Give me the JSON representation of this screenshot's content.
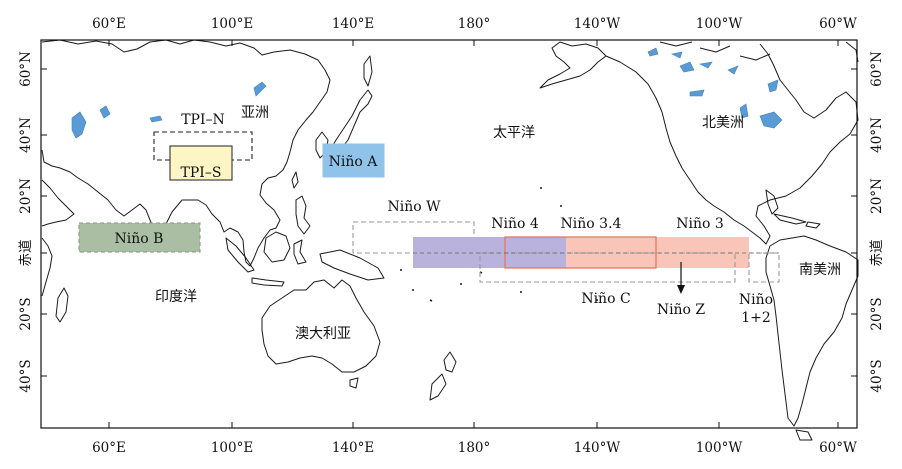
{
  "axes": {
    "lon_ticks": [
      "60°E",
      "100°E",
      "140°E",
      "180°",
      "140°W",
      "100°W",
      "60°W"
    ],
    "lat_ticks": [
      "60°N",
      "40°N",
      "20°N",
      "赤道",
      "20°S",
      "40°S"
    ]
  },
  "regions": {
    "tpi_n": "TPI–N",
    "tpi_s": "TPI–S",
    "nino_a": "Niño A",
    "nino_b": "Niño B",
    "nino_w": "Niño W",
    "nino_4": "Niño 4",
    "nino_34": "Niño 3.4",
    "nino_3": "Niño 3",
    "nino_c": "Niño C",
    "nino_z": "Niño Z",
    "nino_12_line1": "Niño",
    "nino_12_line2": "1+2"
  },
  "geo_labels": {
    "asia": "亚洲",
    "pacific": "太平洋",
    "north_america": "北美洲",
    "south_america": "南美洲",
    "indian_ocean": "印度洋",
    "australia": "澳大利亚"
  },
  "colors": {
    "land_outline": "#1a1a1a",
    "lakes": "#5b9bd5",
    "tpi_s_fill": "#fdf6c4",
    "nino_a_fill": "#8fc3ea",
    "nino_b_fill": "#a9bea3",
    "nino_4_fill": "#b8b2dc",
    "nino_3_fill": "#f8c5b8",
    "nino_34_outline": "#e8705a",
    "dashed_gray": "#9a9a9a",
    "dashed_black": "#222222"
  }
}
